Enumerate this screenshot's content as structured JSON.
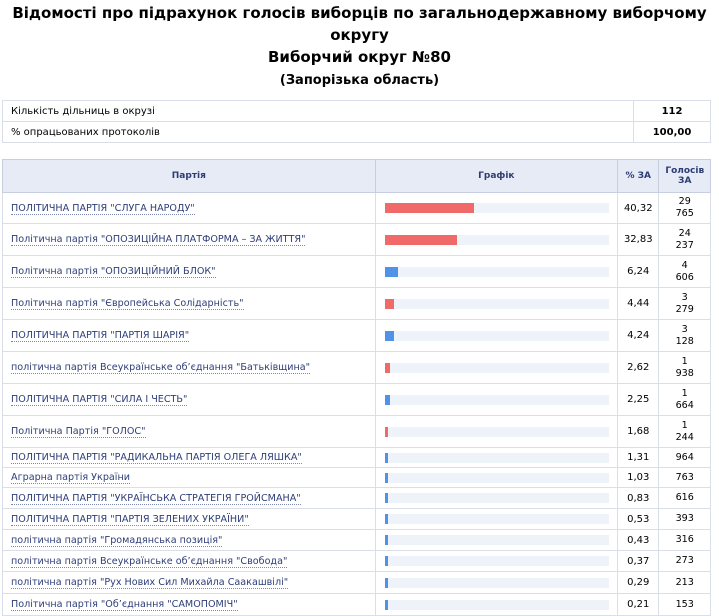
{
  "title": "Відомості про підрахунок голосів виборців по загальнодержавному виборчому округу",
  "district_title": "Виборчий округ №80",
  "region": "(Запорізька область)",
  "summary": {
    "stations_label": "Кількість дільниць в окрузі",
    "stations_value": "112",
    "processed_label": "% опрацьованих протоколів",
    "processed_value": "100,00"
  },
  "table_headers": {
    "party": "Партія",
    "chart": "Графік",
    "pct": "% ЗА",
    "votes_line1": "Голосів",
    "votes_line2": "ЗА"
  },
  "colors": {
    "red": "#f06a6a",
    "blue": "#4f93e8",
    "track": "#eef2f9",
    "header_bg": "#e7ebf5",
    "link": "#2d3d78"
  },
  "rows": [
    {
      "party": "ПОЛІТИЧНА ПАРТІЯ \"СЛУГА НАРОДУ\"",
      "pct": "40,32",
      "pct_value": 40.32,
      "votes_a": "29",
      "votes_b": "765",
      "color": "red"
    },
    {
      "party": "Політична партія \"ОПОЗИЦІЙНА ПЛАТФОРМА – ЗА ЖИТТЯ\"",
      "pct": "32,83",
      "pct_value": 32.83,
      "votes_a": "24",
      "votes_b": "237",
      "color": "red"
    },
    {
      "party": "Політична партія \"ОПОЗИЦІЙНИЙ БЛОК\"",
      "pct": "6,24",
      "pct_value": 6.24,
      "votes_a": "4",
      "votes_b": "606",
      "color": "blue"
    },
    {
      "party": "Політична партія \"Європейська Солідарність\"",
      "pct": "4,44",
      "pct_value": 4.44,
      "votes_a": "3",
      "votes_b": "279",
      "color": "red"
    },
    {
      "party": "ПОЛІТИЧНА ПАРТІЯ \"ПАРТІЯ ШАРІЯ\"",
      "pct": "4,24",
      "pct_value": 4.24,
      "votes_a": "3",
      "votes_b": "128",
      "color": "blue"
    },
    {
      "party": "політична партія Всеукраїнське об’єднання \"Батьківщина\"",
      "pct": "2,62",
      "pct_value": 2.62,
      "votes_a": "1",
      "votes_b": "938",
      "color": "red"
    },
    {
      "party": "ПОЛІТИЧНА ПАРТІЯ \"СИЛА І ЧЕСТЬ\"",
      "pct": "2,25",
      "pct_value": 2.25,
      "votes_a": "1",
      "votes_b": "664",
      "color": "blue"
    },
    {
      "party": "Політична Партія \"ГОЛОС\"",
      "pct": "1,68",
      "pct_value": 1.68,
      "votes_a": "1",
      "votes_b": "244",
      "color": "red"
    },
    {
      "party": "ПОЛІТИЧНА ПАРТІЯ \"РАДИКАЛЬНА ПАРТІЯ ОЛЕГА ЛЯШКА\"",
      "pct": "1,31",
      "pct_value": 1.31,
      "votes_a": "964",
      "votes_b": "",
      "color": "blue"
    },
    {
      "party": "Аграрна партія України",
      "pct": "1,03",
      "pct_value": 1.03,
      "votes_a": "763",
      "votes_b": "",
      "color": "blue"
    },
    {
      "party": "ПОЛІТИЧНА ПАРТІЯ \"УКРАЇНСЬКА СТРАТЕГІЯ ГРОЙСМАНА\"",
      "pct": "0,83",
      "pct_value": 0.83,
      "votes_a": "616",
      "votes_b": "",
      "color": "blue"
    },
    {
      "party": "ПОЛІТИЧНА ПАРТІЯ \"ПАРТІЯ ЗЕЛЕНИХ УКРАЇНИ\"",
      "pct": "0,53",
      "pct_value": 0.53,
      "votes_a": "393",
      "votes_b": "",
      "color": "blue"
    },
    {
      "party": "політична партія \"Громадянська позиція\"",
      "pct": "0,43",
      "pct_value": 0.43,
      "votes_a": "316",
      "votes_b": "",
      "color": "blue"
    },
    {
      "party": "політична партія Всеукраїнське об’єднання \"Свобода\"",
      "pct": "0,37",
      "pct_value": 0.37,
      "votes_a": "273",
      "votes_b": "",
      "color": "blue"
    },
    {
      "party": "політична партія \"Рух Нових Сил Михайла Саакашвілі\"",
      "pct": "0,29",
      "pct_value": 0.29,
      "votes_a": "213",
      "votes_b": "",
      "color": "blue"
    },
    {
      "party": "Політична партія \"Об’єднання \"САМОПОМІЧ\"",
      "pct": "0,21",
      "pct_value": 0.21,
      "votes_a": "153",
      "votes_b": "",
      "color": "blue"
    }
  ]
}
